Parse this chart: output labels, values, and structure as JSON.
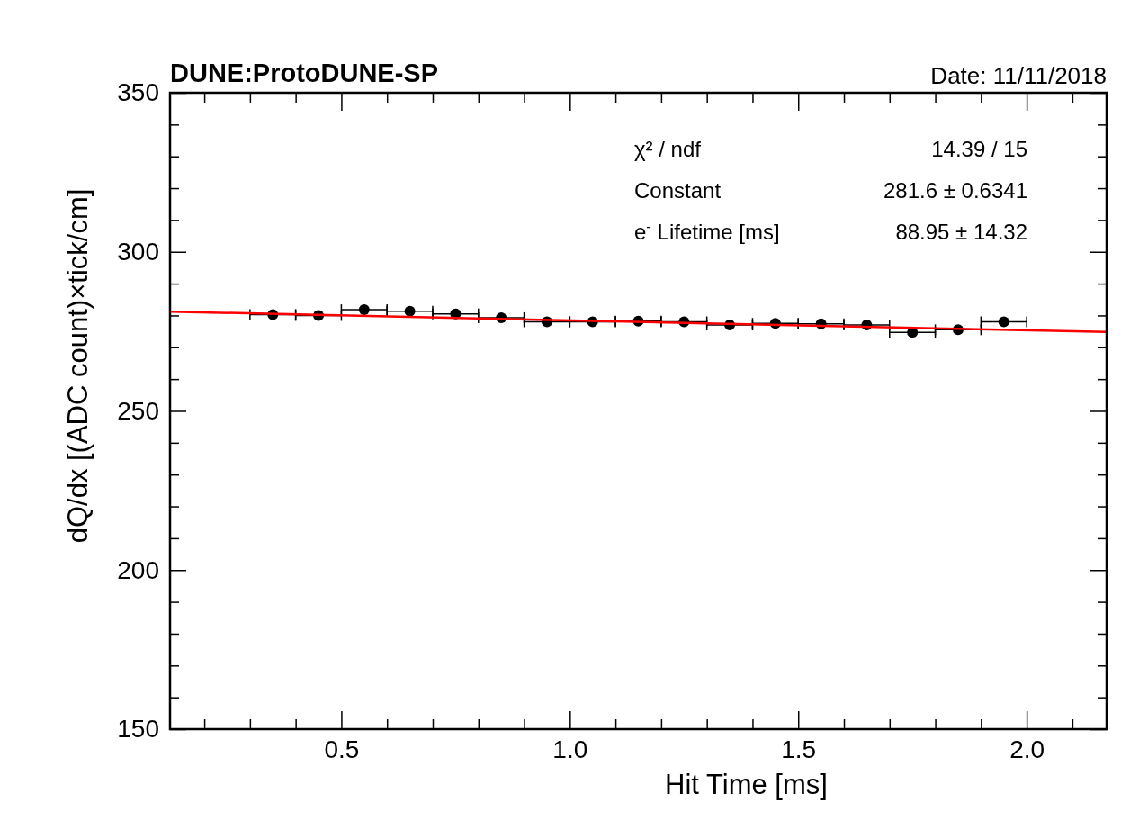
{
  "chart_data": {
    "type": "scatter",
    "title": "DUNE:ProtoDUNE-SP",
    "subtitle": "Date: 11/11/2018",
    "xlabel": "Hit Time [ms]",
    "ylabel": "dQ/dx [(ADC count)×tick/cm]",
    "xlim": [
      0.125,
      2.175
    ],
    "ylim": [
      150,
      350
    ],
    "xticks": [
      {
        "value": 0.2,
        "label": null
      },
      {
        "value": 0.3,
        "label": null
      },
      {
        "value": 0.4,
        "label": null
      },
      0.5,
      {
        "value": 0.6,
        "label": null
      },
      {
        "value": 0.7,
        "label": null
      },
      {
        "value": 0.8,
        "label": null
      },
      {
        "value": 0.9,
        "label": null
      },
      {
        "value": 1,
        "label": "1.0"
      },
      {
        "value": 1.1,
        "label": null
      },
      {
        "value": 1.2,
        "label": null
      },
      {
        "value": 1.3,
        "label": null
      },
      {
        "value": 1.4,
        "label": null
      },
      1.5,
      {
        "value": 1.6,
        "label": null
      },
      {
        "value": 1.7,
        "label": null
      },
      {
        "value": 1.8,
        "label": null
      },
      {
        "value": 1.9,
        "label": null
      },
      {
        "value": 2,
        "label": "2.0"
      },
      {
        "value": 2.1,
        "label": null
      }
    ],
    "yticks": [
      150,
      {
        "value": 160,
        "label": null
      },
      {
        "value": 170,
        "label": null
      },
      {
        "value": 180,
        "label": null
      },
      {
        "value": 190,
        "label": null
      },
      200,
      {
        "value": 210,
        "label": null
      },
      {
        "value": 220,
        "label": null
      },
      {
        "value": 230,
        "label": null
      },
      {
        "value": 240,
        "label": null
      },
      250,
      {
        "value": 260,
        "label": null
      },
      {
        "value": 270,
        "label": null
      },
      {
        "value": 280,
        "label": null
      },
      {
        "value": 290,
        "label": null
      },
      300,
      {
        "value": 310,
        "label": null
      },
      {
        "value": 320,
        "label": null
      },
      {
        "value": 330,
        "label": null
      },
      {
        "value": 340,
        "label": null
      },
      350
    ],
    "grid": false,
    "marker": "circle",
    "annotations": [
      "χ² / ndf",
      "14.39 / 15",
      "Constant",
      "281.6 ± 0.6341",
      "e$^{-}$ Lifetime [ms]",
      "88.95 ± 14.32"
    ],
    "series": [
      {
        "color": "#000000",
        "x": [
          0.35,
          0.45,
          0.55,
          0.65,
          0.75,
          0.85,
          0.95,
          1.05,
          1.15,
          1.25,
          1.35,
          1.45,
          1.55,
          1.65,
          1.75,
          1.85,
          1.95
        ],
        "values": [
          280.3,
          280.0,
          281.8,
          281.3,
          280.5,
          279.3,
          278.0,
          278.0,
          278.2,
          278.0,
          277.0,
          277.5,
          277.4,
          277.0,
          274.7,
          275.5,
          278.0
        ],
        "xerrors": [
          0.05,
          0.05,
          0.05,
          0.05,
          0.05,
          0.05,
          0.05,
          0.05,
          0.05,
          0.05,
          0.05,
          0.05,
          0.05,
          0.05,
          0.05,
          0.05,
          0.05
        ]
      },
      {
        "type": "line",
        "marker": "none",
        "color": "#ff0000",
        "x": [
          0.125,
          2.175
        ],
        "values": [
          281.2,
          274.8
        ]
      }
    ]
  }
}
